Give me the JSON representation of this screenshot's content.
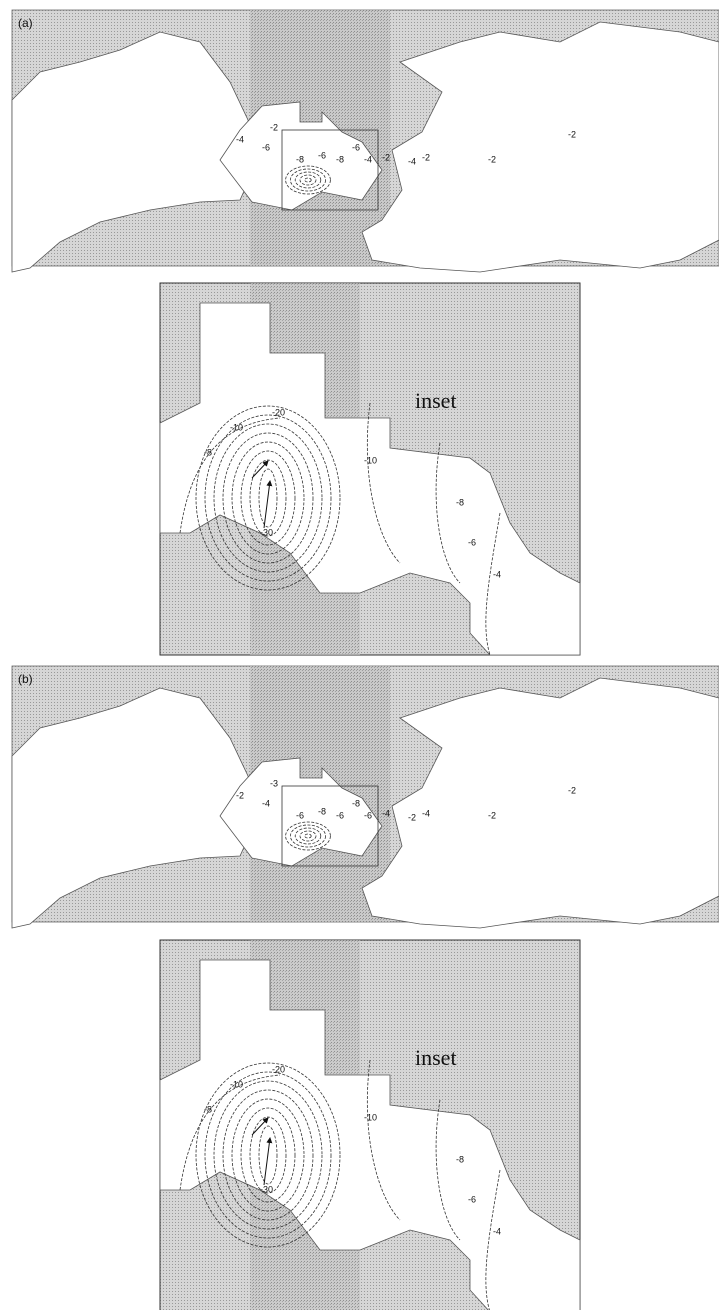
{
  "panels": [
    {
      "label": "(a)",
      "map_contours": [
        "-2",
        "-4",
        "-6",
        "-8",
        "-6",
        "-8",
        "-6",
        "-4",
        "-2",
        "-4",
        "-2",
        "-2",
        "-2"
      ],
      "inset": {
        "title": "inset",
        "contours": [
          "-10",
          "-20",
          "-30",
          "-8",
          "-10",
          "-8",
          "-6",
          "-4"
        ]
      }
    },
    {
      "label": "(b)",
      "map_contours": [
        "-3",
        "-2",
        "-4",
        "-6",
        "-8",
        "-6",
        "-8",
        "-6",
        "-4",
        "-2",
        "-4",
        "-2",
        "-2"
      ],
      "inset": {
        "title": "inset",
        "contours": [
          "-10",
          "-20",
          "-30",
          "-8",
          "-10",
          "-8",
          "-6",
          "-4"
        ]
      }
    }
  ]
}
